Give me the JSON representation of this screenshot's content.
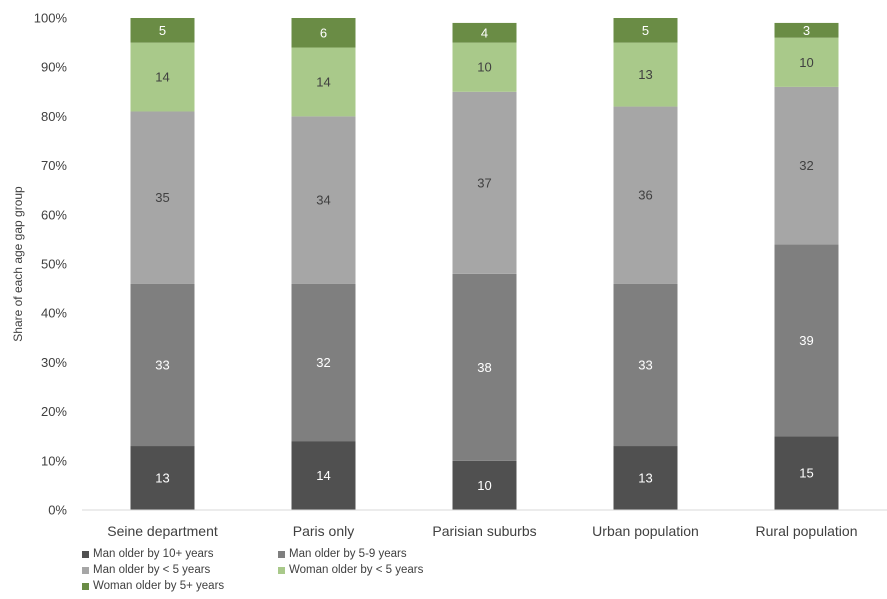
{
  "chart_data": {
    "type": "bar",
    "stacked": true,
    "title": "",
    "xlabel": "",
    "ylabel": "Share of each age gap group",
    "ylim": [
      0,
      100
    ],
    "yticks": [
      "0%",
      "10%",
      "20%",
      "30%",
      "40%",
      "50%",
      "60%",
      "70%",
      "80%",
      "90%",
      "100%"
    ],
    "grid": false,
    "legend_position": "bottom-left",
    "categories": [
      "Seine department",
      "Paris only",
      "Parisian suburbs",
      "Urban population",
      "Rural population"
    ],
    "series": [
      {
        "name": "Man older by 10+ years",
        "values": [
          13,
          14,
          10,
          13,
          15
        ],
        "labels": [
          "13",
          "14",
          "10",
          "13",
          "15"
        ],
        "color": "#505050",
        "label_color": "#ffffff"
      },
      {
        "name": "Man older  by 5-9 years",
        "values": [
          33,
          32,
          38,
          33,
          39
        ],
        "labels": [
          "33",
          "32",
          "38",
          "33",
          "39"
        ],
        "color": "#7f7f7f",
        "label_color": "#ffffff"
      },
      {
        "name": "Man older by < 5 years",
        "values": [
          35,
          34,
          37,
          36,
          32
        ],
        "labels": [
          "35",
          "34",
          "37",
          "36",
          "32"
        ],
        "color": "#a6a6a6",
        "label_color": "#404040"
      },
      {
        "name": "Woman older by < 5 years",
        "values": [
          14,
          14,
          10,
          13,
          10
        ],
        "labels": [
          "14",
          "14",
          "10",
          "13",
          "10"
        ],
        "color": "#a9c98a",
        "label_color": "#404040"
      },
      {
        "name": "Woman older by 5+ years",
        "values": [
          5,
          6,
          4,
          5,
          3
        ],
        "labels": [
          "5",
          "6",
          "4",
          "5",
          "3"
        ],
        "color": "#6a8c45",
        "label_color": "#ffffff"
      }
    ]
  }
}
